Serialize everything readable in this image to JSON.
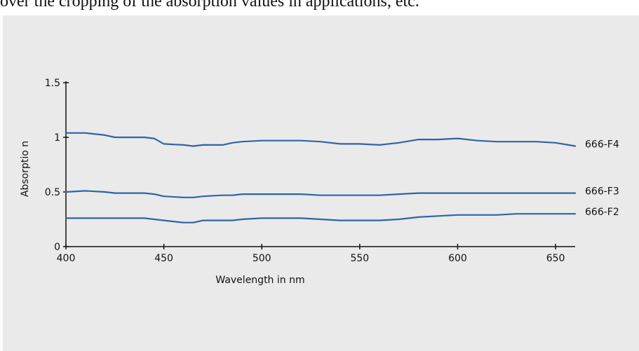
{
  "caption": {
    "text": "over the cropping of the absorption values in applications, etc."
  },
  "chart_data": {
    "type": "line",
    "title": "",
    "xlabel": "Wavelength in nm",
    "ylabel": "Absorptio n",
    "xlim": [
      400,
      660
    ],
    "ylim": [
      0,
      1.5
    ],
    "x_ticks": [
      400,
      450,
      500,
      550,
      600,
      650
    ],
    "x_tick_labels": [
      "400",
      "450",
      "500",
      "550",
      "600",
      "650"
    ],
    "y_ticks": [
      0,
      0.5,
      1,
      1.5
    ],
    "y_tick_labels": [
      "0",
      "0.5",
      "1",
      "1.5"
    ],
    "grid": false,
    "line_color": "#2f64a8",
    "x": [
      400,
      410,
      420,
      425,
      430,
      440,
      445,
      450,
      460,
      465,
      470,
      480,
      485,
      490,
      500,
      510,
      520,
      530,
      540,
      550,
      560,
      570,
      580,
      590,
      600,
      610,
      620,
      630,
      640,
      650,
      660
    ],
    "series": [
      {
        "name": "666-F4",
        "values": [
          1.04,
          1.04,
          1.02,
          1.0,
          1.0,
          1.0,
          0.99,
          0.94,
          0.93,
          0.92,
          0.93,
          0.93,
          0.95,
          0.96,
          0.97,
          0.97,
          0.97,
          0.96,
          0.94,
          0.94,
          0.93,
          0.95,
          0.98,
          0.98,
          0.99,
          0.97,
          0.96,
          0.96,
          0.96,
          0.95,
          0.92
        ]
      },
      {
        "name": "666-F3",
        "values": [
          0.5,
          0.51,
          0.5,
          0.49,
          0.49,
          0.49,
          0.48,
          0.46,
          0.45,
          0.45,
          0.46,
          0.47,
          0.47,
          0.48,
          0.48,
          0.48,
          0.48,
          0.47,
          0.47,
          0.47,
          0.47,
          0.48,
          0.49,
          0.49,
          0.49,
          0.49,
          0.49,
          0.49,
          0.49,
          0.49,
          0.49
        ]
      },
      {
        "name": "666-F2",
        "values": [
          0.26,
          0.26,
          0.26,
          0.26,
          0.26,
          0.26,
          0.25,
          0.24,
          0.22,
          0.22,
          0.24,
          0.24,
          0.24,
          0.25,
          0.26,
          0.26,
          0.26,
          0.25,
          0.24,
          0.24,
          0.24,
          0.25,
          0.27,
          0.28,
          0.29,
          0.29,
          0.29,
          0.3,
          0.3,
          0.3,
          0.3
        ]
      }
    ]
  }
}
